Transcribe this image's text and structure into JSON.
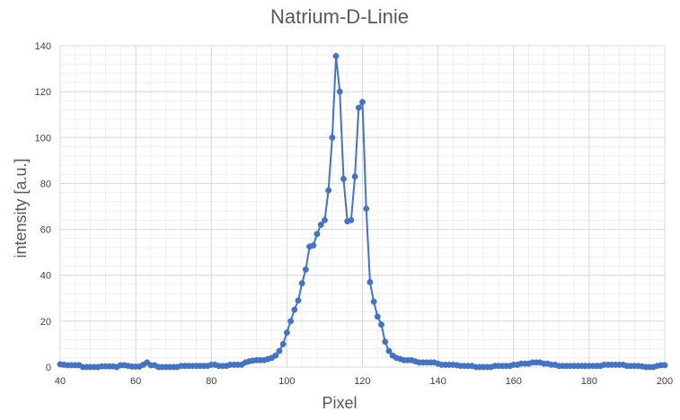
{
  "chart_data": {
    "type": "scatter",
    "title": "Natrium-D-Linie",
    "xlabel": "Pixel",
    "ylabel": "intensity [a.u.]",
    "xlim": [
      40,
      200
    ],
    "ylim": [
      0,
      140
    ],
    "xticks": [
      40,
      60,
      80,
      100,
      120,
      140,
      160,
      180,
      200
    ],
    "yticks": [
      0,
      20,
      40,
      60,
      80,
      100,
      120,
      140
    ],
    "grid": true,
    "minor_grid": true,
    "legend": "none",
    "colors": {
      "series": "#4472c4",
      "major_grid": "#d9d9d9",
      "minor_grid": "#efefef",
      "text": "#595959"
    },
    "series": [
      {
        "x": [
          40,
          41,
          42,
          43,
          44,
          45,
          46,
          47,
          48,
          49,
          50,
          51,
          52,
          53,
          54,
          55,
          56,
          57,
          58,
          59,
          60,
          61,
          62,
          63,
          64,
          65,
          66,
          67,
          68,
          69,
          70,
          71,
          72,
          73,
          74,
          75,
          76,
          77,
          78,
          79,
          80,
          81,
          82,
          83,
          84,
          85,
          86,
          87,
          88,
          89,
          90,
          91,
          92,
          93,
          94,
          95,
          96,
          97,
          98,
          99,
          100,
          101,
          102,
          103,
          104,
          105,
          106,
          107,
          108,
          109,
          110,
          111,
          112,
          113,
          114,
          115,
          116,
          117,
          118,
          119,
          120,
          121,
          122,
          123,
          124,
          125,
          126,
          127,
          128,
          129,
          130,
          131,
          132,
          133,
          134,
          135,
          136,
          137,
          138,
          139,
          140,
          141,
          142,
          143,
          144,
          145,
          146,
          147,
          148,
          149,
          150,
          151,
          152,
          153,
          154,
          155,
          156,
          157,
          158,
          159,
          160,
          161,
          162,
          163,
          164,
          165,
          166,
          167,
          168,
          169,
          170,
          171,
          172,
          173,
          174,
          175,
          176,
          177,
          178,
          179,
          180,
          181,
          182,
          183,
          184,
          185,
          186,
          187,
          188,
          189,
          190,
          191,
          192,
          193,
          194,
          195,
          196,
          197,
          198,
          199,
          200
        ],
        "y": [
          1.2,
          1.0,
          0.8,
          0.8,
          0.8,
          0.8,
          0,
          0,
          0,
          0,
          0,
          0.3,
          0.3,
          0.3,
          0.3,
          0,
          0.8,
          0.8,
          0.5,
          0.2,
          0.2,
          0.2,
          1.0,
          2.0,
          0.8,
          0.8,
          0,
          0,
          0,
          0,
          0,
          0,
          0.5,
          0.5,
          0.5,
          0.5,
          0.5,
          0.5,
          0.5,
          0.5,
          1.0,
          1.0,
          0.5,
          0.5,
          0.5,
          1.0,
          1.0,
          1.0,
          1.0,
          2.0,
          2.5,
          2.8,
          3.0,
          3.0,
          3.0,
          3.5,
          4.0,
          5.0,
          7.0,
          10.0,
          15.0,
          20.0,
          25.0,
          29.0,
          36.5,
          42.5,
          52.5,
          53.0,
          58.0,
          62.0,
          64.0,
          77.0,
          100.0,
          135.5,
          120.0,
          82.0,
          63.5,
          64.0,
          83.0,
          113.0,
          115.5,
          69.0,
          37.0,
          28.5,
          22.0,
          18.5,
          11.0,
          7.0,
          5.0,
          4.0,
          3.5,
          3.0,
          3.0,
          3.0,
          2.5,
          2.0,
          2.0,
          2.0,
          2.0,
          2.0,
          1.5,
          1.0,
          1.0,
          1.0,
          1.0,
          0.8,
          0.5,
          0.5,
          0.5,
          0.5,
          0,
          0,
          0,
          0,
          0,
          0.5,
          0.5,
          0.5,
          0.5,
          0.5,
          1.0,
          1.0,
          1.5,
          1.5,
          1.5,
          2.0,
          2.0,
          2.0,
          1.5,
          1.5,
          1.0,
          1.0,
          0.5,
          0.5,
          0.5,
          0.5,
          0.5,
          0.5,
          0.5,
          0.5,
          0.5,
          0.5,
          0.5,
          0.5,
          1.0,
          1.0,
          1.0,
          1.0,
          1.0,
          1.0,
          0.5,
          0.5,
          0.5,
          0.5,
          0.3,
          0,
          0,
          0,
          0.5,
          0.8,
          0.8
        ]
      }
    ]
  }
}
